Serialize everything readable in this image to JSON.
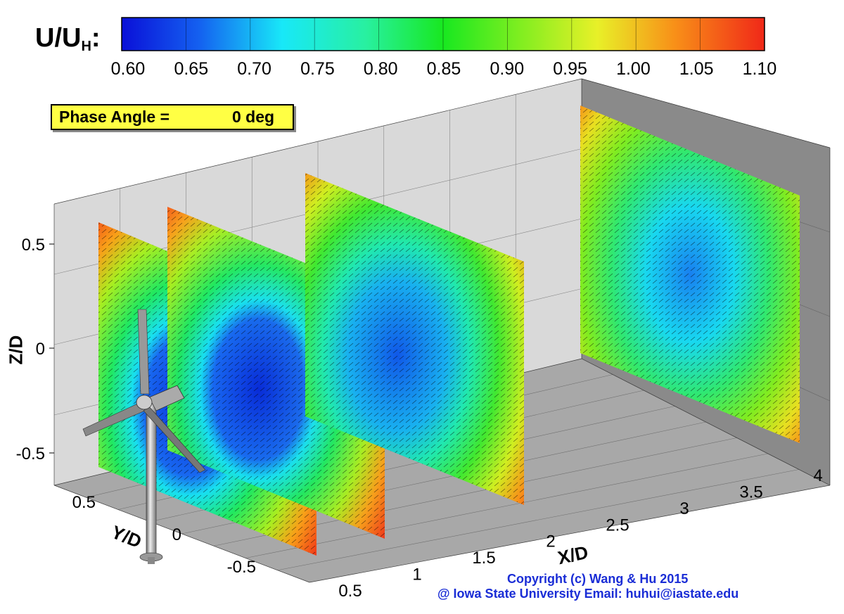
{
  "colorbar": {
    "title_main": "U/U",
    "title_sub": "H",
    "title_colon": ":",
    "ticks": [
      "0.60",
      "0.65",
      "0.70",
      "0.75",
      "0.80",
      "0.85",
      "0.90",
      "0.95",
      "1.00",
      "1.05",
      "1.10"
    ]
  },
  "phase": {
    "label": "Phase Angle =",
    "value": "0 deg"
  },
  "axes": {
    "z_title": "Z/D",
    "y_title": "Y/D",
    "x_title": "X/D",
    "z_ticks": [
      "0.5",
      "0",
      "-0.5"
    ],
    "y_ticks": [
      "0.5",
      "0",
      "-0.5"
    ],
    "x_ticks": [
      "0.5",
      "1",
      "1.5",
      "2",
      "2.5",
      "3",
      "3.5",
      "4"
    ]
  },
  "copyright": {
    "line1": "Copyright (c) Wang & Hu 2015",
    "line2": "@ Iowa State University   Email: huhui@iastate.edu"
  },
  "colors": {
    "accent_text": "#1a2dd6",
    "phase_bg": "#ffff44"
  },
  "chart_data": {
    "type": "heatmap",
    "variable": "U/U_H",
    "colorbar_range": [
      0.6,
      1.1
    ],
    "colormap": "blue-cyan-green-yellow-red",
    "planes_x_over_D": [
      0.5,
      1.0,
      2.0,
      4.0
    ],
    "y_range": [
      -0.5,
      0.5
    ],
    "z_range": [
      -0.5,
      0.5
    ],
    "x_range": [
      0.5,
      4
    ],
    "min_velocity_per_plane": [
      0.6,
      0.62,
      0.66,
      0.72
    ]
  }
}
